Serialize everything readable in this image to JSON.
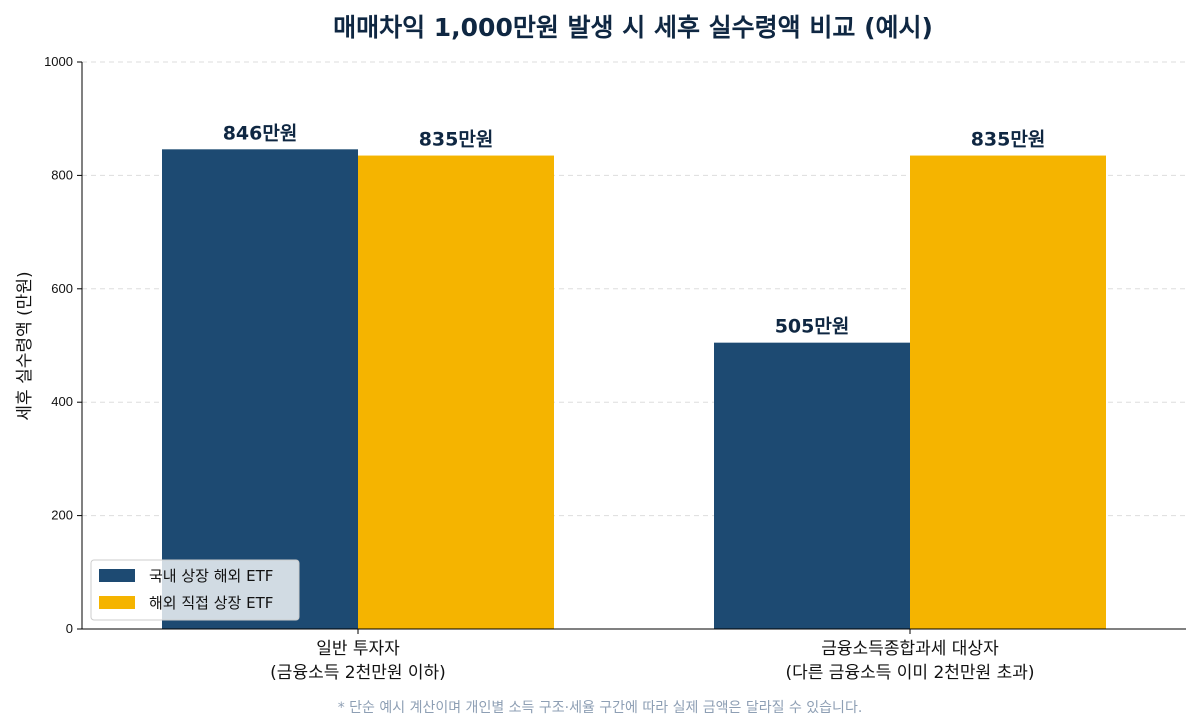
{
  "chart_data": {
    "type": "bar",
    "title": "매매차익 1,000만원 발생 시 세후 실수령액 비교 (예시)",
    "ylabel": "세후 실수령액 (만원)",
    "xlabel": "",
    "ylim": [
      0,
      1000
    ],
    "yticks": [
      "0",
      "200",
      "400",
      "600",
      "800",
      "1000"
    ],
    "ytick_values": [
      0,
      200,
      400,
      600,
      800,
      1000
    ],
    "grid": true,
    "legend_position": "bottom-left",
    "categories": [
      [
        "일반 투자자",
        "(금융소득 2천만원 이하)"
      ],
      [
        "금융소득종합과세 대상자",
        "(다른 금융소득 이미 2천만원 초과)"
      ]
    ],
    "series": [
      {
        "name": "국내 상장 해외 ETF",
        "color": "#1d4a72",
        "values": [
          846,
          505
        ],
        "labels": [
          "846만원",
          "505만원"
        ]
      },
      {
        "name": "해외 직접 상장 ETF",
        "color": "#f5b400",
        "values": [
          835,
          835
        ],
        "labels": [
          "835만원",
          "835만원"
        ]
      }
    ],
    "footnote": "* 단순 예시 계산이며 개인별 소득 구조·세율 구간에 따라 실제 금액은 달라질 수 있습니다."
  }
}
